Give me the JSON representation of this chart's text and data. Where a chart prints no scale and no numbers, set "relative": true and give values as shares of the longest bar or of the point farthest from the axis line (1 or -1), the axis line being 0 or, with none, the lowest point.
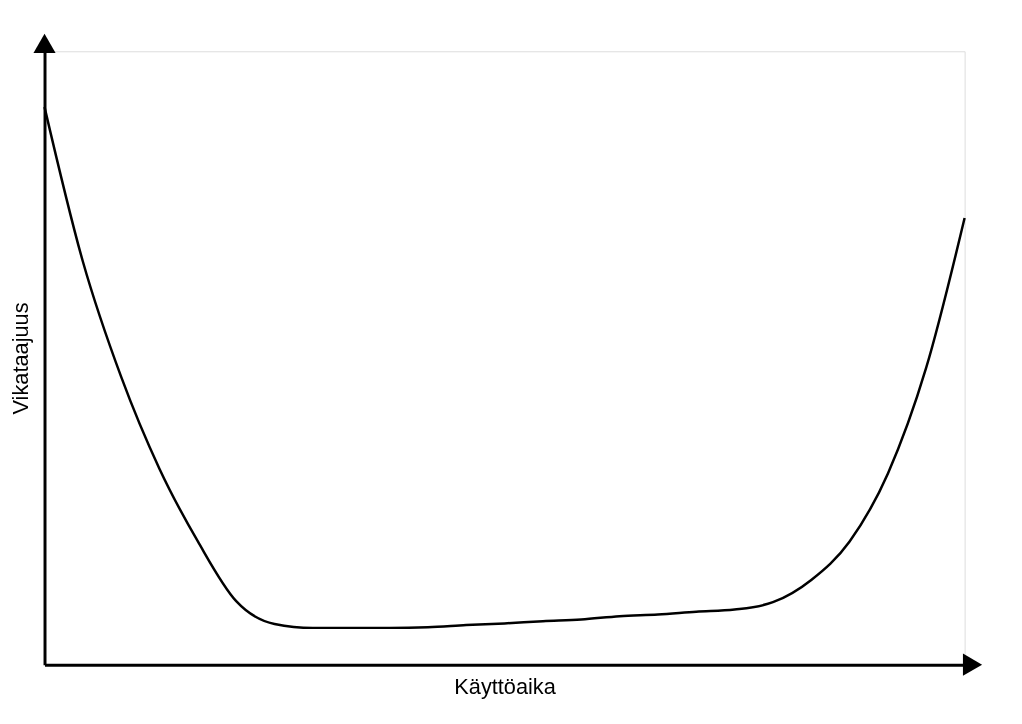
{
  "chart_data": {
    "type": "line",
    "xlabel": "Käyttöaika",
    "ylabel": "Vikataajuus",
    "relative": true,
    "grid": false,
    "legend": false,
    "marker": "none",
    "line_style": "solid",
    "tick_labels": false,
    "categories": [
      null,
      null,
      null,
      null,
      null,
      null,
      null,
      null,
      null,
      null,
      null,
      null,
      null,
      null,
      null,
      null,
      null,
      null,
      null,
      null,
      null,
      null,
      null,
      null,
      null
    ],
    "series": [
      {
        "color": "#000000",
        "values": [
          1,
          0.723,
          0.516,
          0.351,
          0.221,
          0.114,
          0.073,
          0.066,
          0.066,
          0.066,
          0.067,
          0.071,
          0.074,
          0.078,
          0.081,
          0.087,
          0.09,
          0.095,
          0.099,
          0.112,
          0.152,
          0.221,
          0.343,
          0.533,
          0.801
        ]
      }
    ]
  }
}
